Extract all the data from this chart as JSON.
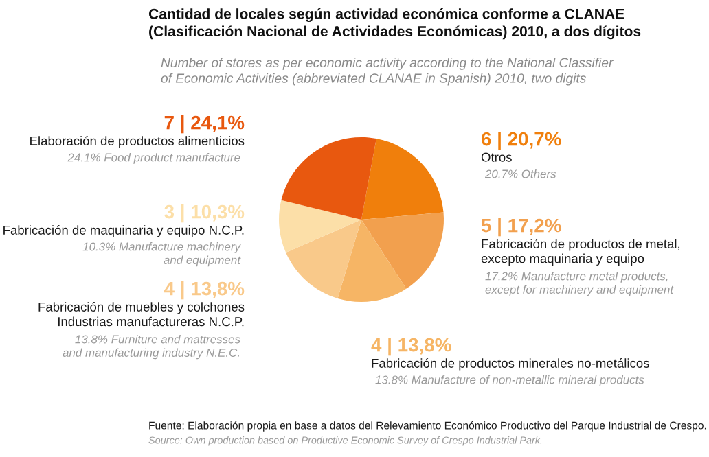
{
  "chart_data": {
    "type": "pie",
    "title": "Cantidad de locales según actividad económica conforme a CLANAE\n(Clasificación Nacional de Actividades Económicas) 2010, a dos dígitos",
    "subtitle": "Number of stores as per economic activity according to the National Classifier\nof Economic Activities (abbreviated CLANAE in Spanish) 2010, two digits",
    "categories": [
      "Otros",
      "Fabricación de productos de metal,\nexcepto maquinaria y equipo",
      "Fabricación de productos minerales no-metálicos",
      "Fabricación de muebles y colchones\nIndustrias manufactureras N.C.P.",
      "Fabricación de maquinaria y equipo N.C.P.",
      "Elaboración de productos alimenticios"
    ],
    "values": [
      6,
      5,
      4,
      4,
      3,
      7
    ],
    "value_labels": [
      "6 | 20,7%",
      "5 | 17,2%",
      "4 | 13,8%",
      "4 | 13,8%",
      "3 | 10,3%",
      "7 | 24,1%"
    ],
    "colors": [
      "#f07f0c",
      "#f2a04e",
      "#f6b565",
      "#f9c98a",
      "#fcdfa8",
      "#e8580f"
    ],
    "annotations": [
      "20.7% Others",
      "17.2% Manufacture metal products,\nexcept for machinery and equipment",
      "13.8% Manufacture of non-metallic mineral products",
      "13.8% Furniture and mattresses\nand manufacturing industry N.E.C.",
      "10.3% Manufacture machinery\nand equipment",
      "24.1% Food product manufacture",
      "Fuente: Elaboración propia en base a datos del Relevamiento Económico Productivo del Parque Industrial de Crespo.",
      "Source: Own production based on Productive Economic Survey of Crespo Industrial Park."
    ]
  }
}
